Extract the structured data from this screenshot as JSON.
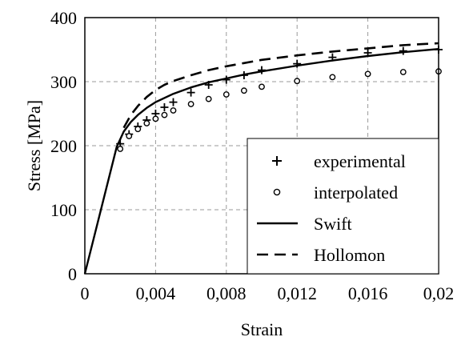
{
  "chart_data": {
    "type": "line",
    "xlabel": "Strain",
    "ylabel": "Stress [MPa]",
    "xlim": [
      0,
      0.02
    ],
    "ylim": [
      0,
      400
    ],
    "xticks": [
      0,
      0.004,
      0.008,
      0.012,
      0.016,
      0.02
    ],
    "xtick_labels": [
      "0",
      "0,004",
      "0,008",
      "0,012",
      "0,016",
      "0,02"
    ],
    "yticks": [
      0,
      100,
      200,
      300,
      400
    ],
    "ytick_labels": [
      "0",
      "100",
      "200",
      "300",
      "400"
    ],
    "grid": true,
    "legend_position": "bottom-right",
    "series": [
      {
        "name": "experimental",
        "style": "plus-marker",
        "color": "#000000",
        "x": [
          0.002,
          0.0025,
          0.003,
          0.0035,
          0.004,
          0.0045,
          0.005,
          0.006,
          0.007,
          0.008,
          0.009,
          0.01,
          0.012,
          0.014,
          0.016,
          0.018,
          0.02
        ],
        "y": [
          203,
          218,
          230,
          240,
          250,
          260,
          268,
          283,
          295,
          303,
          310,
          318,
          328,
          338,
          345,
          348,
          350
        ]
      },
      {
        "name": "interpolated",
        "style": "circle-marker",
        "color": "#000000",
        "x": [
          0.002,
          0.0025,
          0.003,
          0.0035,
          0.004,
          0.0045,
          0.005,
          0.006,
          0.007,
          0.008,
          0.009,
          0.01,
          0.012,
          0.014,
          0.016,
          0.018,
          0.02
        ],
        "y": [
          195,
          215,
          226,
          235,
          242,
          248,
          255,
          265,
          273,
          280,
          286,
          292,
          301,
          307,
          312,
          315,
          316
        ]
      },
      {
        "name": "Swift",
        "style": "solid-line",
        "color": "#000000",
        "x": [
          0,
          0.0018,
          0.0022,
          0.0026,
          0.003,
          0.0035,
          0.004,
          0.005,
          0.006,
          0.007,
          0.008,
          0.009,
          0.01,
          0.012,
          0.014,
          0.016,
          0.018,
          0.02
        ],
        "y": [
          0,
          198,
          222,
          237,
          248,
          259,
          268,
          281,
          291,
          299,
          305,
          311,
          316,
          325,
          333,
          340,
          346,
          351
        ]
      },
      {
        "name": "Hollomon",
        "style": "dashed-line",
        "color": "#000000",
        "x": [
          0.0022,
          0.0026,
          0.003,
          0.0035,
          0.004,
          0.0045,
          0.005,
          0.006,
          0.007,
          0.008,
          0.009,
          0.01,
          0.012,
          0.014,
          0.016,
          0.018,
          0.02
        ],
        "y": [
          228,
          248,
          262,
          276,
          287,
          295,
          301,
          310,
          318,
          324,
          329,
          334,
          341,
          347,
          352,
          357,
          360
        ]
      }
    ]
  }
}
